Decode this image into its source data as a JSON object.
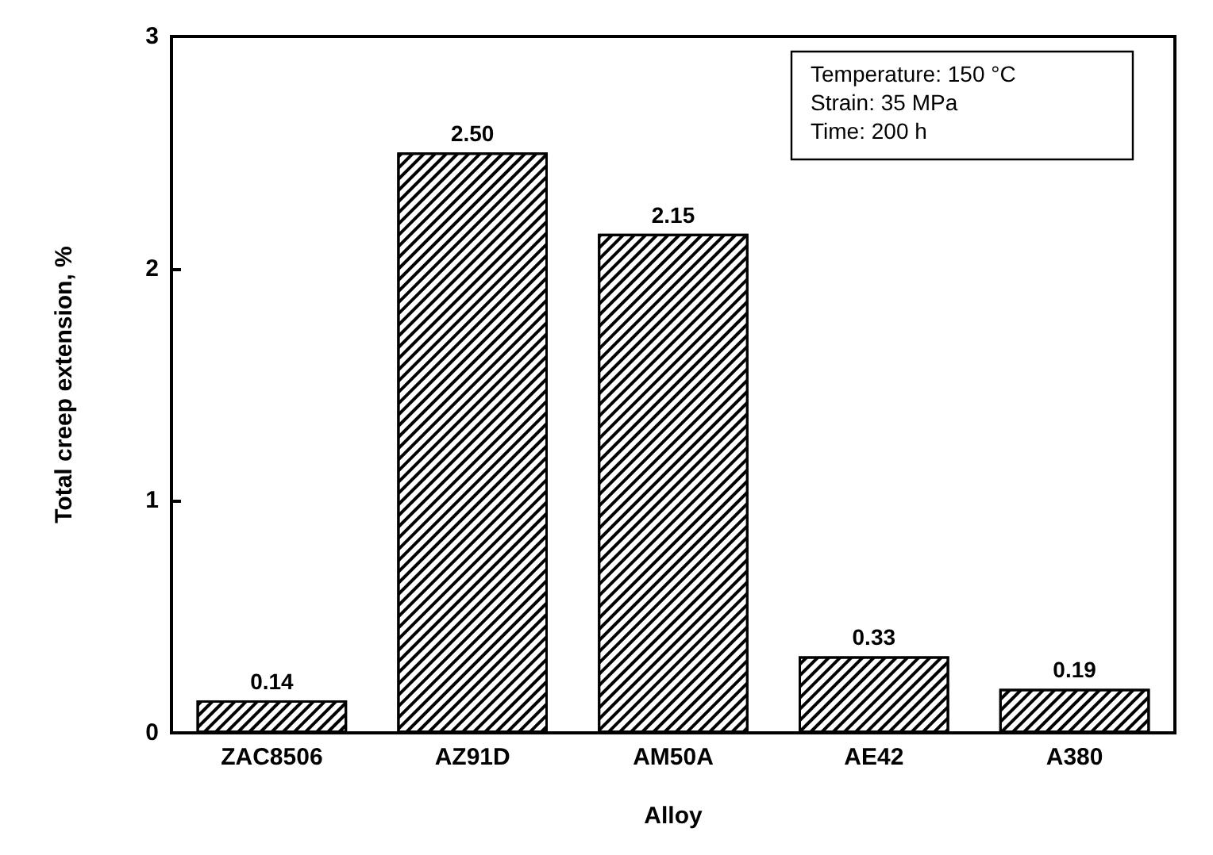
{
  "chart_data": {
    "type": "bar",
    "xlabel": "Alloy",
    "ylabel": "Total creep extension, %",
    "categories": [
      "ZAC8506",
      "AZ91D",
      "AM50A",
      "AE42",
      "A380"
    ],
    "values": [
      0.14,
      2.5,
      2.15,
      0.33,
      0.19
    ],
    "value_labels": [
      "0.14",
      "2.50",
      "2.15",
      "0.33",
      "0.19"
    ],
    "color": "#ffffff",
    "ylim": [
      0,
      3
    ],
    "yticks": [
      0,
      1,
      2,
      3
    ],
    "grid": false,
    "annotations": [
      "Temperature: 150 °C",
      "Strain: 35 MPa",
      "Time: 200 h"
    ]
  }
}
